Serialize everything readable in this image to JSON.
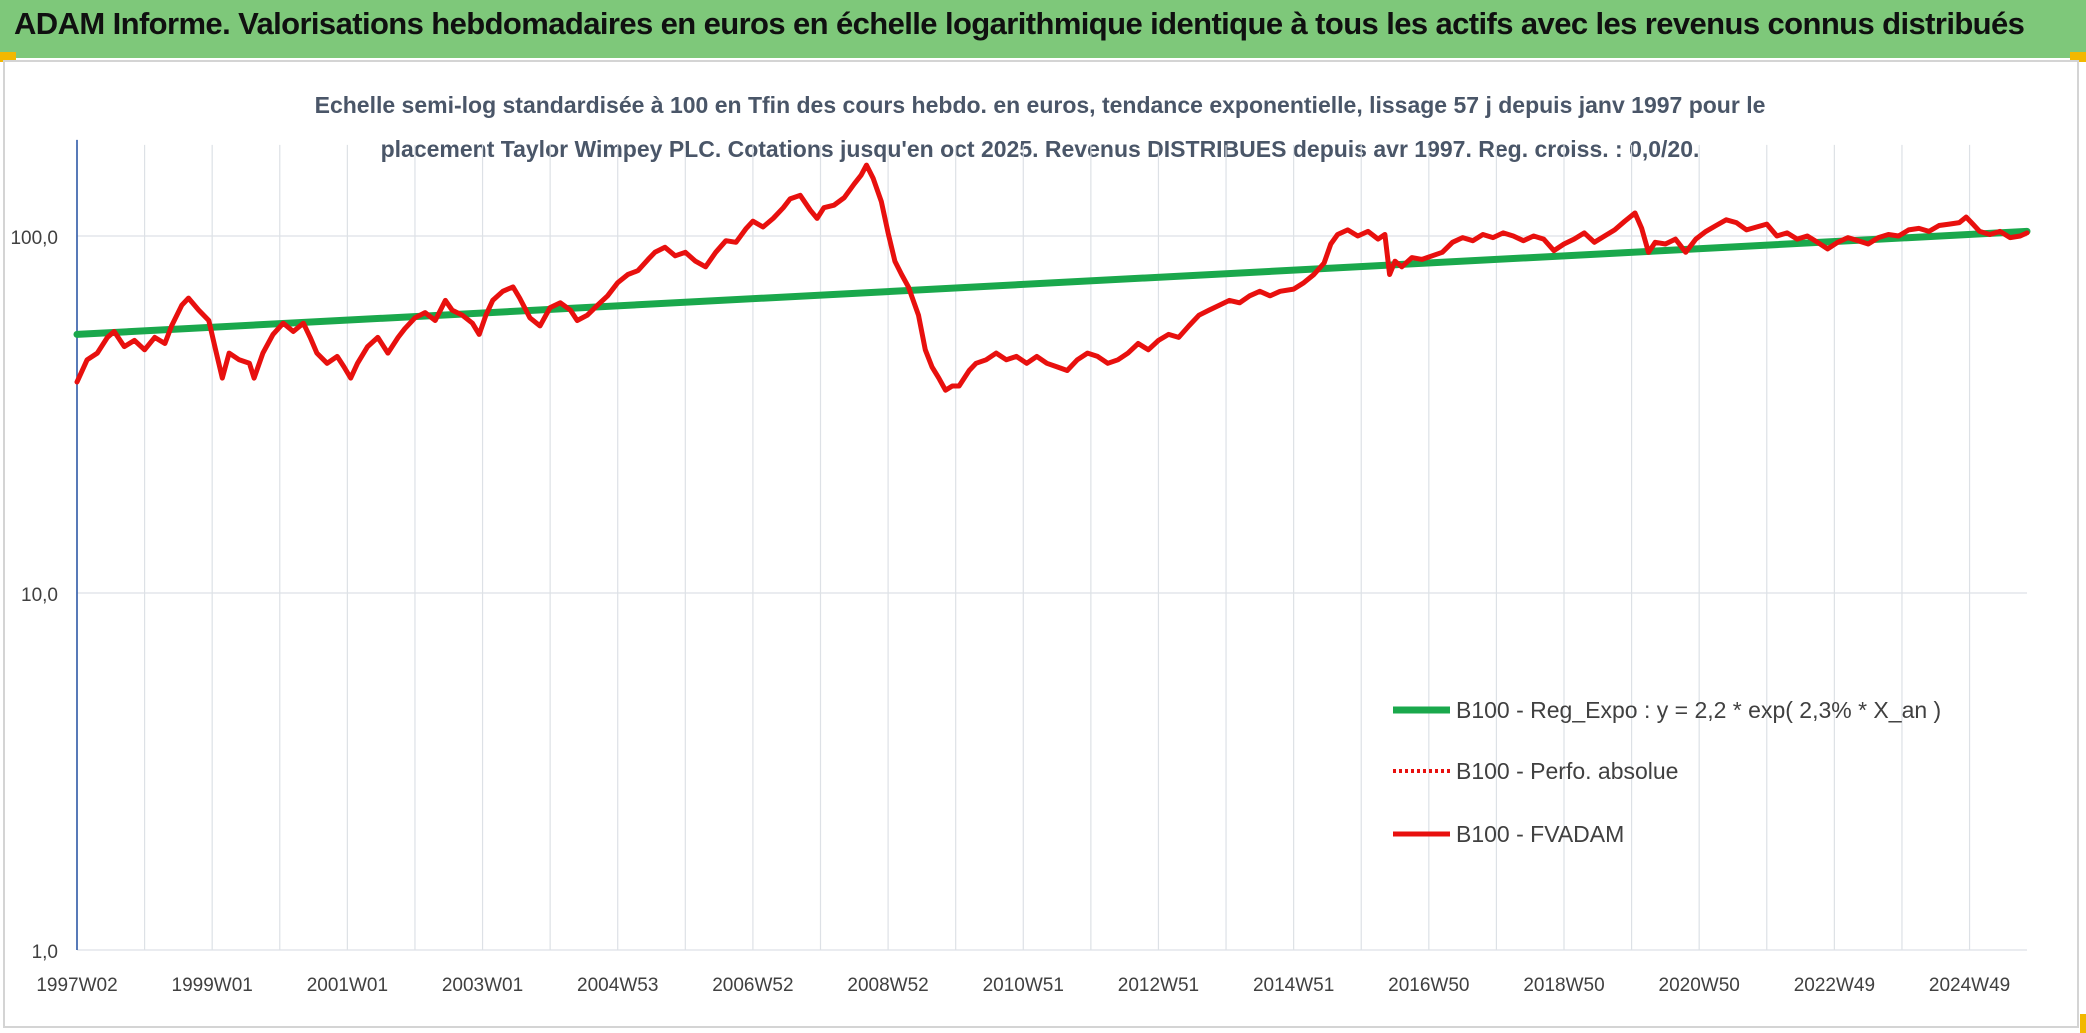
{
  "header": {
    "title": "ADAM Informe. Valorisations hebdomadaires en euros en échelle logarithmique identique à tous les actifs avec les revenus connus distribués"
  },
  "colors": {
    "header_bg": "#7ec87a",
    "accent_corner": "#f2b800",
    "trend_line": "#1aa84c",
    "price_line": "#e8100e",
    "axis_text": "#404040",
    "title_text": "#4a5668",
    "grid": "#dde1e6"
  },
  "chart_data": {
    "type": "line",
    "title_line1": "Echelle semi-log standardisée à 100 en Tfin des cours hebdo. en euros, tendance exponentielle, lissage 57 j depuis janv 1997 pour le",
    "title_line2": "placement Taylor Wimpey PLC. Cotations jusqu'en oct 2025. Revenus DISTRIBUES depuis avr 1997. Reg. croiss. : 0,0/20.",
    "y_scale": "log",
    "ylim": [
      1,
      180
    ],
    "y_ticks": [
      {
        "value": 1,
        "label": "1,0"
      },
      {
        "value": 10,
        "label": "10,0"
      },
      {
        "value": 100,
        "label": "100,0"
      }
    ],
    "xlim": [
      1997.0,
      2025.85
    ],
    "x_ticks": [
      {
        "x": 1997.0,
        "label": "1997W02"
      },
      {
        "x": 1999.0,
        "label": "1999W01"
      },
      {
        "x": 2001.0,
        "label": "2001W01"
      },
      {
        "x": 2003.0,
        "label": "2003W01"
      },
      {
        "x": 2005.0,
        "label": "2004W53"
      },
      {
        "x": 2007.0,
        "label": "2006W52"
      },
      {
        "x": 2009.0,
        "label": "2008W52"
      },
      {
        "x": 2011.0,
        "label": "2010W51"
      },
      {
        "x": 2013.0,
        "label": "2012W51"
      },
      {
        "x": 2015.0,
        "label": "2014W51"
      },
      {
        "x": 2017.0,
        "label": "2016W50"
      },
      {
        "x": 2019.0,
        "label": "2018W50"
      },
      {
        "x": 2021.0,
        "label": "2020W50"
      },
      {
        "x": 2023.0,
        "label": "2022W49"
      },
      {
        "x": 2025.0,
        "label": "2024W49"
      }
    ],
    "grid": true,
    "legend_position": "bottom-right",
    "series": [
      {
        "name": "B100 - Reg_Expo : y = 2,2 * exp( 2,3% *  X_an )",
        "style": "solid-green",
        "points": [
          [
            1997.0,
            53
          ],
          [
            2025.85,
            103
          ]
        ]
      },
      {
        "name": "B100 - Perfo. absolue",
        "style": "dotted-red",
        "points": []
      },
      {
        "name": "B100 - FVADAM",
        "style": "solid-red",
        "points": [
          [
            1997.0,
            39
          ],
          [
            1997.15,
            45
          ],
          [
            1997.3,
            47
          ],
          [
            1997.45,
            52
          ],
          [
            1997.55,
            54
          ],
          [
            1997.7,
            49
          ],
          [
            1997.85,
            51
          ],
          [
            1998.0,
            48
          ],
          [
            1998.15,
            52
          ],
          [
            1998.3,
            50
          ],
          [
            1998.4,
            56
          ],
          [
            1998.55,
            64
          ],
          [
            1998.65,
            67
          ],
          [
            1998.8,
            62
          ],
          [
            1998.95,
            58
          ],
          [
            1999.05,
            48
          ],
          [
            1999.15,
            40
          ],
          [
            1999.25,
            47
          ],
          [
            1999.4,
            45
          ],
          [
            1999.55,
            44
          ],
          [
            1999.62,
            40
          ],
          [
            1999.75,
            47
          ],
          [
            1999.9,
            53
          ],
          [
            2000.05,
            57
          ],
          [
            2000.2,
            54
          ],
          [
            2000.35,
            57
          ],
          [
            2000.45,
            52
          ],
          [
            2000.55,
            47
          ],
          [
            2000.7,
            44
          ],
          [
            2000.85,
            46
          ],
          [
            2000.95,
            43
          ],
          [
            2001.05,
            40
          ],
          [
            2001.15,
            44
          ],
          [
            2001.3,
            49
          ],
          [
            2001.45,
            52
          ],
          [
            2001.6,
            47
          ],
          [
            2001.75,
            52
          ],
          [
            2001.85,
            55
          ],
          [
            2002.0,
            59
          ],
          [
            2002.15,
            61
          ],
          [
            2002.3,
            58
          ],
          [
            2002.45,
            66
          ],
          [
            2002.55,
            62
          ],
          [
            2002.7,
            60
          ],
          [
            2002.85,
            57
          ],
          [
            2002.95,
            53
          ],
          [
            2003.05,
            60
          ],
          [
            2003.15,
            66
          ],
          [
            2003.3,
            70
          ],
          [
            2003.45,
            72
          ],
          [
            2003.55,
            67
          ],
          [
            2003.7,
            59
          ],
          [
            2003.85,
            56
          ],
          [
            2004.0,
            63
          ],
          [
            2004.15,
            65
          ],
          [
            2004.3,
            62
          ],
          [
            2004.4,
            58
          ],
          [
            2004.55,
            60
          ],
          [
            2004.7,
            64
          ],
          [
            2004.85,
            68
          ],
          [
            2005.0,
            74
          ],
          [
            2005.15,
            78
          ],
          [
            2005.3,
            80
          ],
          [
            2005.45,
            86
          ],
          [
            2005.55,
            90
          ],
          [
            2005.7,
            93
          ],
          [
            2005.85,
            88
          ],
          [
            2006.0,
            90
          ],
          [
            2006.15,
            85
          ],
          [
            2006.3,
            82
          ],
          [
            2006.45,
            90
          ],
          [
            2006.6,
            97
          ],
          [
            2006.75,
            96
          ],
          [
            2006.9,
            105
          ],
          [
            2007.0,
            110
          ],
          [
            2007.15,
            106
          ],
          [
            2007.3,
            112
          ],
          [
            2007.45,
            120
          ],
          [
            2007.55,
            127
          ],
          [
            2007.7,
            130
          ],
          [
            2007.85,
            118
          ],
          [
            2007.95,
            112
          ],
          [
            2008.05,
            120
          ],
          [
            2008.2,
            122
          ],
          [
            2008.35,
            128
          ],
          [
            2008.5,
            140
          ],
          [
            2008.6,
            148
          ],
          [
            2008.68,
            158
          ],
          [
            2008.78,
            145
          ],
          [
            2008.9,
            125
          ],
          [
            2009.0,
            102
          ],
          [
            2009.1,
            85
          ],
          [
            2009.2,
            78
          ],
          [
            2009.3,
            72
          ],
          [
            2009.45,
            60
          ],
          [
            2009.55,
            48
          ],
          [
            2009.65,
            43
          ],
          [
            2009.75,
            40
          ],
          [
            2009.85,
            37
          ],
          [
            2009.95,
            38
          ],
          [
            2010.05,
            38
          ],
          [
            2010.2,
            42
          ],
          [
            2010.3,
            44
          ],
          [
            2010.45,
            45
          ],
          [
            2010.6,
            47
          ],
          [
            2010.75,
            45
          ],
          [
            2010.9,
            46
          ],
          [
            2011.05,
            44
          ],
          [
            2011.2,
            46
          ],
          [
            2011.35,
            44
          ],
          [
            2011.5,
            43
          ],
          [
            2011.65,
            42
          ],
          [
            2011.8,
            45
          ],
          [
            2011.95,
            47
          ],
          [
            2012.1,
            46
          ],
          [
            2012.25,
            44
          ],
          [
            2012.4,
            45
          ],
          [
            2012.55,
            47
          ],
          [
            2012.7,
            50
          ],
          [
            2012.85,
            48
          ],
          [
            2013.0,
            51
          ],
          [
            2013.15,
            53
          ],
          [
            2013.3,
            52
          ],
          [
            2013.45,
            56
          ],
          [
            2013.6,
            60
          ],
          [
            2013.75,
            62
          ],
          [
            2013.9,
            64
          ],
          [
            2014.05,
            66
          ],
          [
            2014.2,
            65
          ],
          [
            2014.35,
            68
          ],
          [
            2014.5,
            70
          ],
          [
            2014.65,
            68
          ],
          [
            2014.8,
            70
          ],
          [
            2015.0,
            71
          ],
          [
            2015.15,
            74
          ],
          [
            2015.3,
            78
          ],
          [
            2015.45,
            84
          ],
          [
            2015.55,
            95
          ],
          [
            2015.65,
            101
          ],
          [
            2015.8,
            104
          ],
          [
            2015.95,
            100
          ],
          [
            2016.1,
            103
          ],
          [
            2016.25,
            98
          ],
          [
            2016.35,
            101
          ],
          [
            2016.42,
            78
          ],
          [
            2016.5,
            85
          ],
          [
            2016.6,
            82
          ],
          [
            2016.75,
            87
          ],
          [
            2016.9,
            86
          ],
          [
            2017.05,
            88
          ],
          [
            2017.2,
            90
          ],
          [
            2017.35,
            96
          ],
          [
            2017.5,
            99
          ],
          [
            2017.65,
            97
          ],
          [
            2017.8,
            101
          ],
          [
            2017.95,
            99
          ],
          [
            2018.1,
            102
          ],
          [
            2018.25,
            100
          ],
          [
            2018.4,
            97
          ],
          [
            2018.55,
            100
          ],
          [
            2018.7,
            98
          ],
          [
            2018.85,
            91
          ],
          [
            2019.0,
            95
          ],
          [
            2019.15,
            98
          ],
          [
            2019.3,
            102
          ],
          [
            2019.45,
            96
          ],
          [
            2019.6,
            100
          ],
          [
            2019.75,
            104
          ],
          [
            2019.9,
            110
          ],
          [
            2020.05,
            116
          ],
          [
            2020.15,
            105
          ],
          [
            2020.25,
            90
          ],
          [
            2020.35,
            96
          ],
          [
            2020.5,
            95
          ],
          [
            2020.65,
            98
          ],
          [
            2020.8,
            90
          ],
          [
            2020.95,
            98
          ],
          [
            2021.1,
            103
          ],
          [
            2021.25,
            107
          ],
          [
            2021.4,
            111
          ],
          [
            2021.55,
            109
          ],
          [
            2021.7,
            104
          ],
          [
            2021.85,
            106
          ],
          [
            2022.0,
            108
          ],
          [
            2022.15,
            100
          ],
          [
            2022.3,
            102
          ],
          [
            2022.45,
            98
          ],
          [
            2022.6,
            100
          ],
          [
            2022.75,
            96
          ],
          [
            2022.9,
            92
          ],
          [
            2023.05,
            96
          ],
          [
            2023.2,
            99
          ],
          [
            2023.35,
            97
          ],
          [
            2023.5,
            95
          ],
          [
            2023.65,
            99
          ],
          [
            2023.8,
            101
          ],
          [
            2023.95,
            100
          ],
          [
            2024.1,
            104
          ],
          [
            2024.25,
            105
          ],
          [
            2024.4,
            103
          ],
          [
            2024.55,
            107
          ],
          [
            2024.7,
            108
          ],
          [
            2024.85,
            109
          ],
          [
            2024.95,
            113
          ],
          [
            2025.05,
            108
          ],
          [
            2025.15,
            103
          ],
          [
            2025.3,
            101
          ],
          [
            2025.45,
            103
          ],
          [
            2025.6,
            99
          ],
          [
            2025.75,
            100
          ],
          [
            2025.85,
            102
          ]
        ]
      }
    ]
  }
}
